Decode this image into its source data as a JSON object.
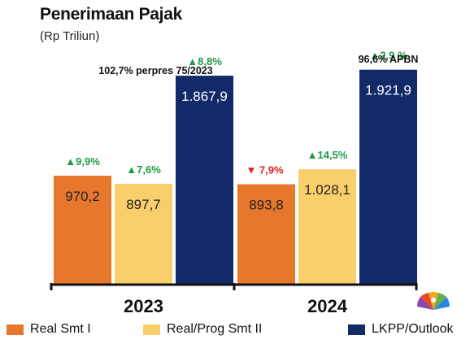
{
  "title": "Penerimaan Pajak",
  "subtitle": "(Rp Triliun)",
  "colors": {
    "real_smt1": "#E8772E",
    "real_prog_smt2": "#F9CF6B",
    "lkpp": "#132A69",
    "up": "#1E9B45",
    "down": "#E0201B"
  },
  "legend": [
    {
      "label": "Real Smt I",
      "color": "#E8772E"
    },
    {
      "label": "Real/Prog Smt II",
      "color": "#F9CF6B"
    },
    {
      "label": "LKPP/Outlook",
      "color": "#132A69"
    }
  ],
  "logo_text": "CNBC INDONESIA",
  "chart_data": {
    "type": "bar",
    "categories": [
      "2023",
      "2024"
    ],
    "ylim": [
      0,
      2000
    ],
    "series": [
      {
        "name": "Real Smt I",
        "values": [
          970.2,
          893.8
        ],
        "labels": [
          "970,2",
          "893,8"
        ],
        "growth": [
          {
            "text": "▲9,9%",
            "dir": "up"
          },
          {
            "text": "▼ 7,9%",
            "dir": "down"
          }
        ]
      },
      {
        "name": "Real/Prog Smt II",
        "values": [
          897.7,
          1028.1
        ],
        "labels": [
          "897,7",
          "1.028,1"
        ],
        "growth": [
          {
            "text": "▲7,6%",
            "dir": "up"
          },
          {
            "text": "▲14,5%",
            "dir": "up"
          }
        ]
      },
      {
        "name": "LKPP/Outlook",
        "values": [
          1867.9,
          1921.9
        ],
        "labels": [
          "1.867,9",
          "1.921,9"
        ],
        "growth": [
          {
            "text": "▲8,8%",
            "dir": "up"
          },
          {
            "text": "▲2,9 %",
            "dir": "up"
          }
        ]
      }
    ],
    "annotations": [
      "102,7% perpres 75/2023",
      "96,6% APBN"
    ]
  }
}
